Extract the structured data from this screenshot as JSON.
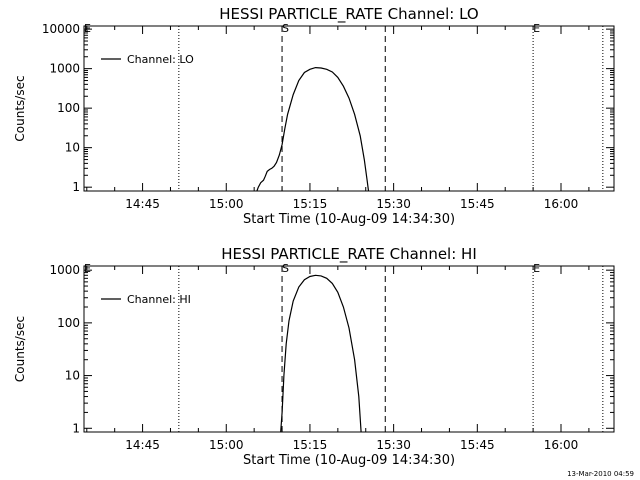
{
  "chart_data": [
    {
      "type": "line",
      "title": "HESSI PARTICLE_RATE Channel: LO",
      "xlabel": "Start Time (10-Aug-09 14:34:30)",
      "ylabel": "Counts/sec",
      "yscale": "log",
      "xlim": [
        "14:34:30",
        "16:09:30"
      ],
      "ylim": [
        0.8,
        12000
      ],
      "x_ticks": [
        "14:45",
        "15:00",
        "15:15",
        "15:30",
        "15:45",
        "16:00"
      ],
      "y_ticks": [
        "1",
        "10",
        "100",
        "1000",
        "10000"
      ],
      "legend": {
        "position": "top-left"
      },
      "series": [
        {
          "name": "Channel: LO",
          "points": [
            [
              "15:05:30",
              0.8
            ],
            [
              "15:05:45",
              1.0
            ],
            [
              "15:06:10",
              1.3
            ],
            [
              "15:06:40",
              1.5
            ],
            [
              "15:07:00",
              1.9
            ],
            [
              "15:07:20",
              2.5
            ],
            [
              "15:07:45",
              2.8
            ],
            [
              "15:08:10",
              3.0
            ],
            [
              "15:08:35",
              3.4
            ],
            [
              "15:09:00",
              4.2
            ],
            [
              "15:09:30",
              6.5
            ],
            [
              "15:10:00",
              12
            ],
            [
              "15:10:30",
              30
            ],
            [
              "15:11:00",
              70
            ],
            [
              "15:12:00",
              220
            ],
            [
              "15:13:00",
              500
            ],
            [
              "15:14:00",
              800
            ],
            [
              "15:15:00",
              960
            ],
            [
              "15:16:00",
              1060
            ],
            [
              "15:17:00",
              1040
            ],
            [
              "15:18:00",
              960
            ],
            [
              "15:19:00",
              820
            ],
            [
              "15:20:00",
              600
            ],
            [
              "15:21:00",
              360
            ],
            [
              "15:22:00",
              180
            ],
            [
              "15:23:00",
              70
            ],
            [
              "15:24:00",
              20
            ],
            [
              "15:24:45",
              5
            ],
            [
              "15:25:15",
              1.5
            ],
            [
              "15:25:30",
              0.8
            ]
          ]
        }
      ],
      "vlines": [
        {
          "x": "14:51:30",
          "style": "dotted"
        },
        {
          "x": "15:10:00",
          "style": "dashed"
        },
        {
          "x": "15:28:30",
          "style": "dashed"
        },
        {
          "x": "15:55:00",
          "style": "dotted"
        },
        {
          "x": "16:07:30",
          "style": "dotted"
        }
      ],
      "markers": [
        {
          "text": "E",
          "x": "14:34:30"
        },
        {
          "text": "S",
          "x": "15:10:00"
        },
        {
          "text": "E",
          "x": "15:55:00"
        }
      ]
    },
    {
      "type": "line",
      "title": "HESSI PARTICLE_RATE Channel: HI",
      "xlabel": "Start Time (10-Aug-09 14:34:30)",
      "ylabel": "Counts/sec",
      "yscale": "log",
      "xlim": [
        "14:34:30",
        "16:09:30"
      ],
      "ylim": [
        0.85,
        1200
      ],
      "x_ticks": [
        "14:45",
        "15:00",
        "15:15",
        "15:30",
        "15:45",
        "16:00"
      ],
      "y_ticks": [
        "1",
        "10",
        "100",
        "1000"
      ],
      "legend": {
        "position": "top-left"
      },
      "series": [
        {
          "name": "Channel: HI",
          "points": [
            [
              "15:09:45",
              0.85
            ],
            [
              "15:10:00",
              2
            ],
            [
              "15:10:20",
              10
            ],
            [
              "15:10:45",
              40
            ],
            [
              "15:11:15",
              110
            ],
            [
              "15:12:00",
              260
            ],
            [
              "15:13:00",
              480
            ],
            [
              "15:14:00",
              660
            ],
            [
              "15:15:00",
              760
            ],
            [
              "15:16:00",
              800
            ],
            [
              "15:17:00",
              780
            ],
            [
              "15:18:00",
              700
            ],
            [
              "15:19:00",
              560
            ],
            [
              "15:20:00",
              380
            ],
            [
              "15:21:00",
              200
            ],
            [
              "15:22:00",
              80
            ],
            [
              "15:23:00",
              20
            ],
            [
              "15:23:45",
              4
            ],
            [
              "15:24:10",
              0.85
            ]
          ]
        }
      ],
      "vlines": [
        {
          "x": "14:51:30",
          "style": "dotted"
        },
        {
          "x": "15:10:00",
          "style": "dashed"
        },
        {
          "x": "15:28:30",
          "style": "dashed"
        },
        {
          "x": "15:55:00",
          "style": "dotted"
        },
        {
          "x": "16:07:30",
          "style": "dotted"
        }
      ],
      "markers": [
        {
          "text": "E",
          "x": "14:34:30"
        },
        {
          "text": "S",
          "x": "15:10:00"
        },
        {
          "text": "E",
          "x": "15:55:00"
        }
      ]
    }
  ],
  "footer": {
    "stamp": "13-Mar-2010 04:59"
  }
}
